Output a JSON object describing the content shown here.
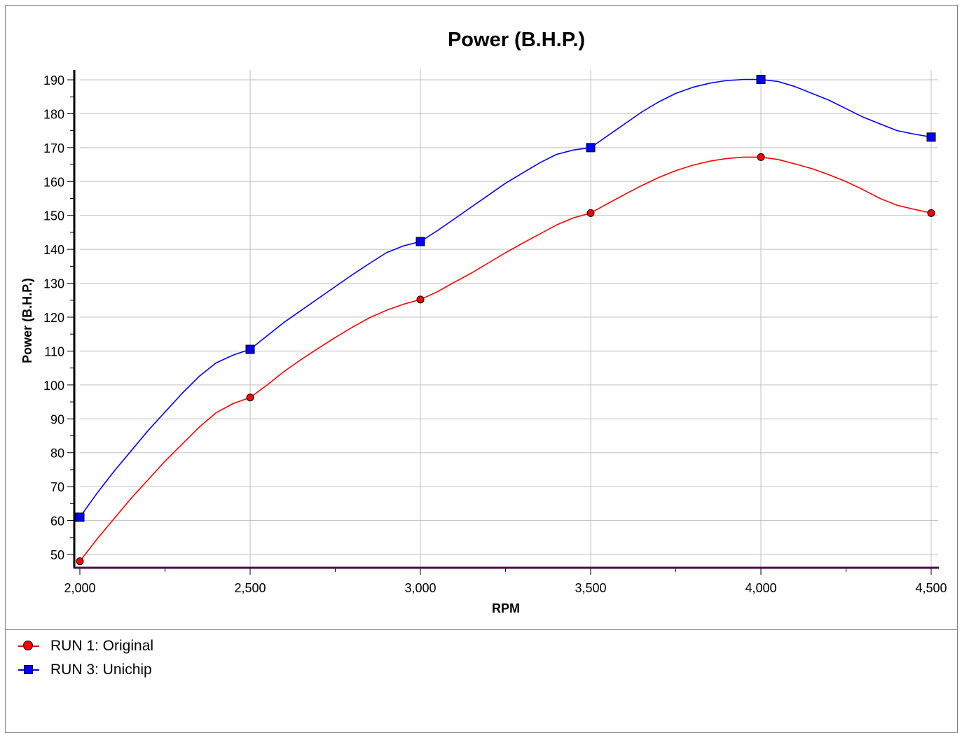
{
  "chart_data": {
    "type": "line",
    "title": "Power (B.H.P.)",
    "xlabel": "RPM",
    "ylabel": "Power (B.H.P.)",
    "xlim": [
      2000,
      4500
    ],
    "ylim": [
      46,
      192
    ],
    "x_ticks": [
      2000,
      2500,
      3000,
      3500,
      4000,
      4500
    ],
    "x_tick_labels": [
      "2,000",
      "2,500",
      "3,000",
      "3,500",
      "4,000",
      "4,500"
    ],
    "y_ticks": [
      50,
      60,
      70,
      80,
      90,
      100,
      110,
      120,
      130,
      140,
      150,
      160,
      170,
      180,
      190
    ],
    "grid": true,
    "legend_position": "bottom",
    "series": [
      {
        "name": "RUN 1: Original",
        "color": "#ff0000",
        "marker": "circle",
        "markers": {
          "x": [
            2000,
            2500,
            3000,
            3500,
            4000,
            4500
          ],
          "y": [
            48,
            96.3,
            125.2,
            150.7,
            167.2,
            150.7
          ]
        },
        "curve": {
          "x": [
            2000,
            2050,
            2100,
            2150,
            2200,
            2250,
            2300,
            2350,
            2400,
            2450,
            2500,
            2550,
            2600,
            2650,
            2700,
            2750,
            2800,
            2850,
            2900,
            2950,
            3000,
            3050,
            3100,
            3150,
            3200,
            3250,
            3300,
            3350,
            3400,
            3450,
            3500,
            3550,
            3600,
            3650,
            3700,
            3750,
            3800,
            3850,
            3900,
            3950,
            4000,
            4050,
            4100,
            4150,
            4200,
            4250,
            4300,
            4350,
            4400,
            4450,
            4500
          ],
          "y": [
            48,
            54.5,
            60.5,
            66.5,
            72,
            77.5,
            82.5,
            87.5,
            91.8,
            94.5,
            96.3,
            100,
            104,
            107.5,
            110.8,
            114,
            117,
            119.8,
            122,
            123.8,
            125.2,
            127.5,
            130.3,
            133,
            136,
            139,
            141.8,
            144.5,
            147.2,
            149.3,
            150.7,
            153.5,
            156.2,
            158.8,
            161.2,
            163.2,
            164.8,
            166,
            166.8,
            167.2,
            167.2,
            166.5,
            165.2,
            163.8,
            162,
            160,
            157.6,
            155,
            153,
            151.8,
            150.7
          ]
        }
      },
      {
        "name": "RUN 3: Unichip",
        "color": "#0000ff",
        "marker": "square",
        "markers": {
          "x": [
            2000,
            2500,
            3000,
            3500,
            4000,
            4500
          ],
          "y": [
            61,
            110.5,
            142.3,
            170,
            190.1,
            173.1
          ]
        },
        "curve": {
          "x": [
            2000,
            2050,
            2100,
            2150,
            2200,
            2250,
            2300,
            2350,
            2400,
            2450,
            2500,
            2550,
            2600,
            2650,
            2700,
            2750,
            2800,
            2850,
            2900,
            2950,
            3000,
            3050,
            3100,
            3150,
            3200,
            3250,
            3300,
            3350,
            3400,
            3450,
            3500,
            3550,
            3600,
            3650,
            3700,
            3750,
            3800,
            3850,
            3900,
            3950,
            4000,
            4050,
            4100,
            4150,
            4200,
            4250,
            4300,
            4350,
            4400,
            4450,
            4500
          ],
          "y": [
            61,
            68,
            74.5,
            80.5,
            86.5,
            92,
            97.5,
            102.5,
            106.5,
            108.8,
            110.5,
            114.5,
            118.5,
            122,
            125.5,
            129,
            132.5,
            135.8,
            139,
            141,
            142.3,
            145.5,
            149,
            152.5,
            156,
            159.5,
            162.5,
            165.5,
            168,
            169.3,
            170,
            173.5,
            177,
            180.5,
            183.5,
            186,
            187.8,
            189,
            189.8,
            190.1,
            190.1,
            189.5,
            188,
            186,
            184,
            181.5,
            179,
            177,
            175,
            174,
            173.1
          ]
        }
      }
    ]
  }
}
